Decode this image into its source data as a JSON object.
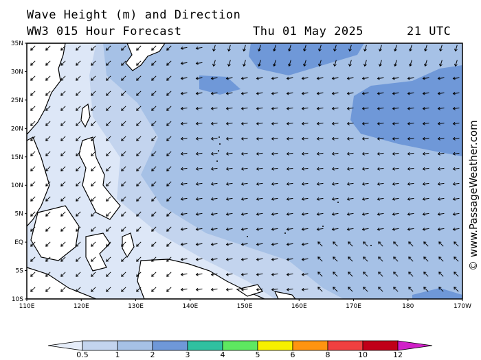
{
  "header": {
    "title": "Wave Height (m) and Direction",
    "subtitle": "WW3 015 Hour Forecast",
    "date": "Thu 01 May 2025",
    "time": "21 UTC"
  },
  "credit": "© www.PassageWeather.com",
  "map": {
    "lat_labels": [
      "35N",
      "30N",
      "25N",
      "20N",
      "15N",
      "10N",
      "5N",
      "EQ",
      "5S",
      "10S"
    ],
    "lon_labels": [
      "110E",
      "120E",
      "130E",
      "140E",
      "150E",
      "160E",
      "170E",
      "180",
      "170W"
    ],
    "colors": {
      "lt05": "#e4ecf9",
      "h05_1": "#c3d4ee",
      "h1_2": "#a6c1e6",
      "h2_3": "#6f98d8",
      "land": "#ffffff",
      "coast": "#000000"
    }
  },
  "legend": {
    "labels": [
      "0.5",
      "1",
      "2",
      "3",
      "4",
      "5",
      "6",
      "8",
      "10",
      "12"
    ],
    "colors": [
      "#e6edf9",
      "#c3d4ee",
      "#a6c1e6",
      "#6f98d8",
      "#30c0a0",
      "#5ee860",
      "#f6f000",
      "#ff9410",
      "#f04040",
      "#c00018",
      "#d020c8"
    ]
  }
}
